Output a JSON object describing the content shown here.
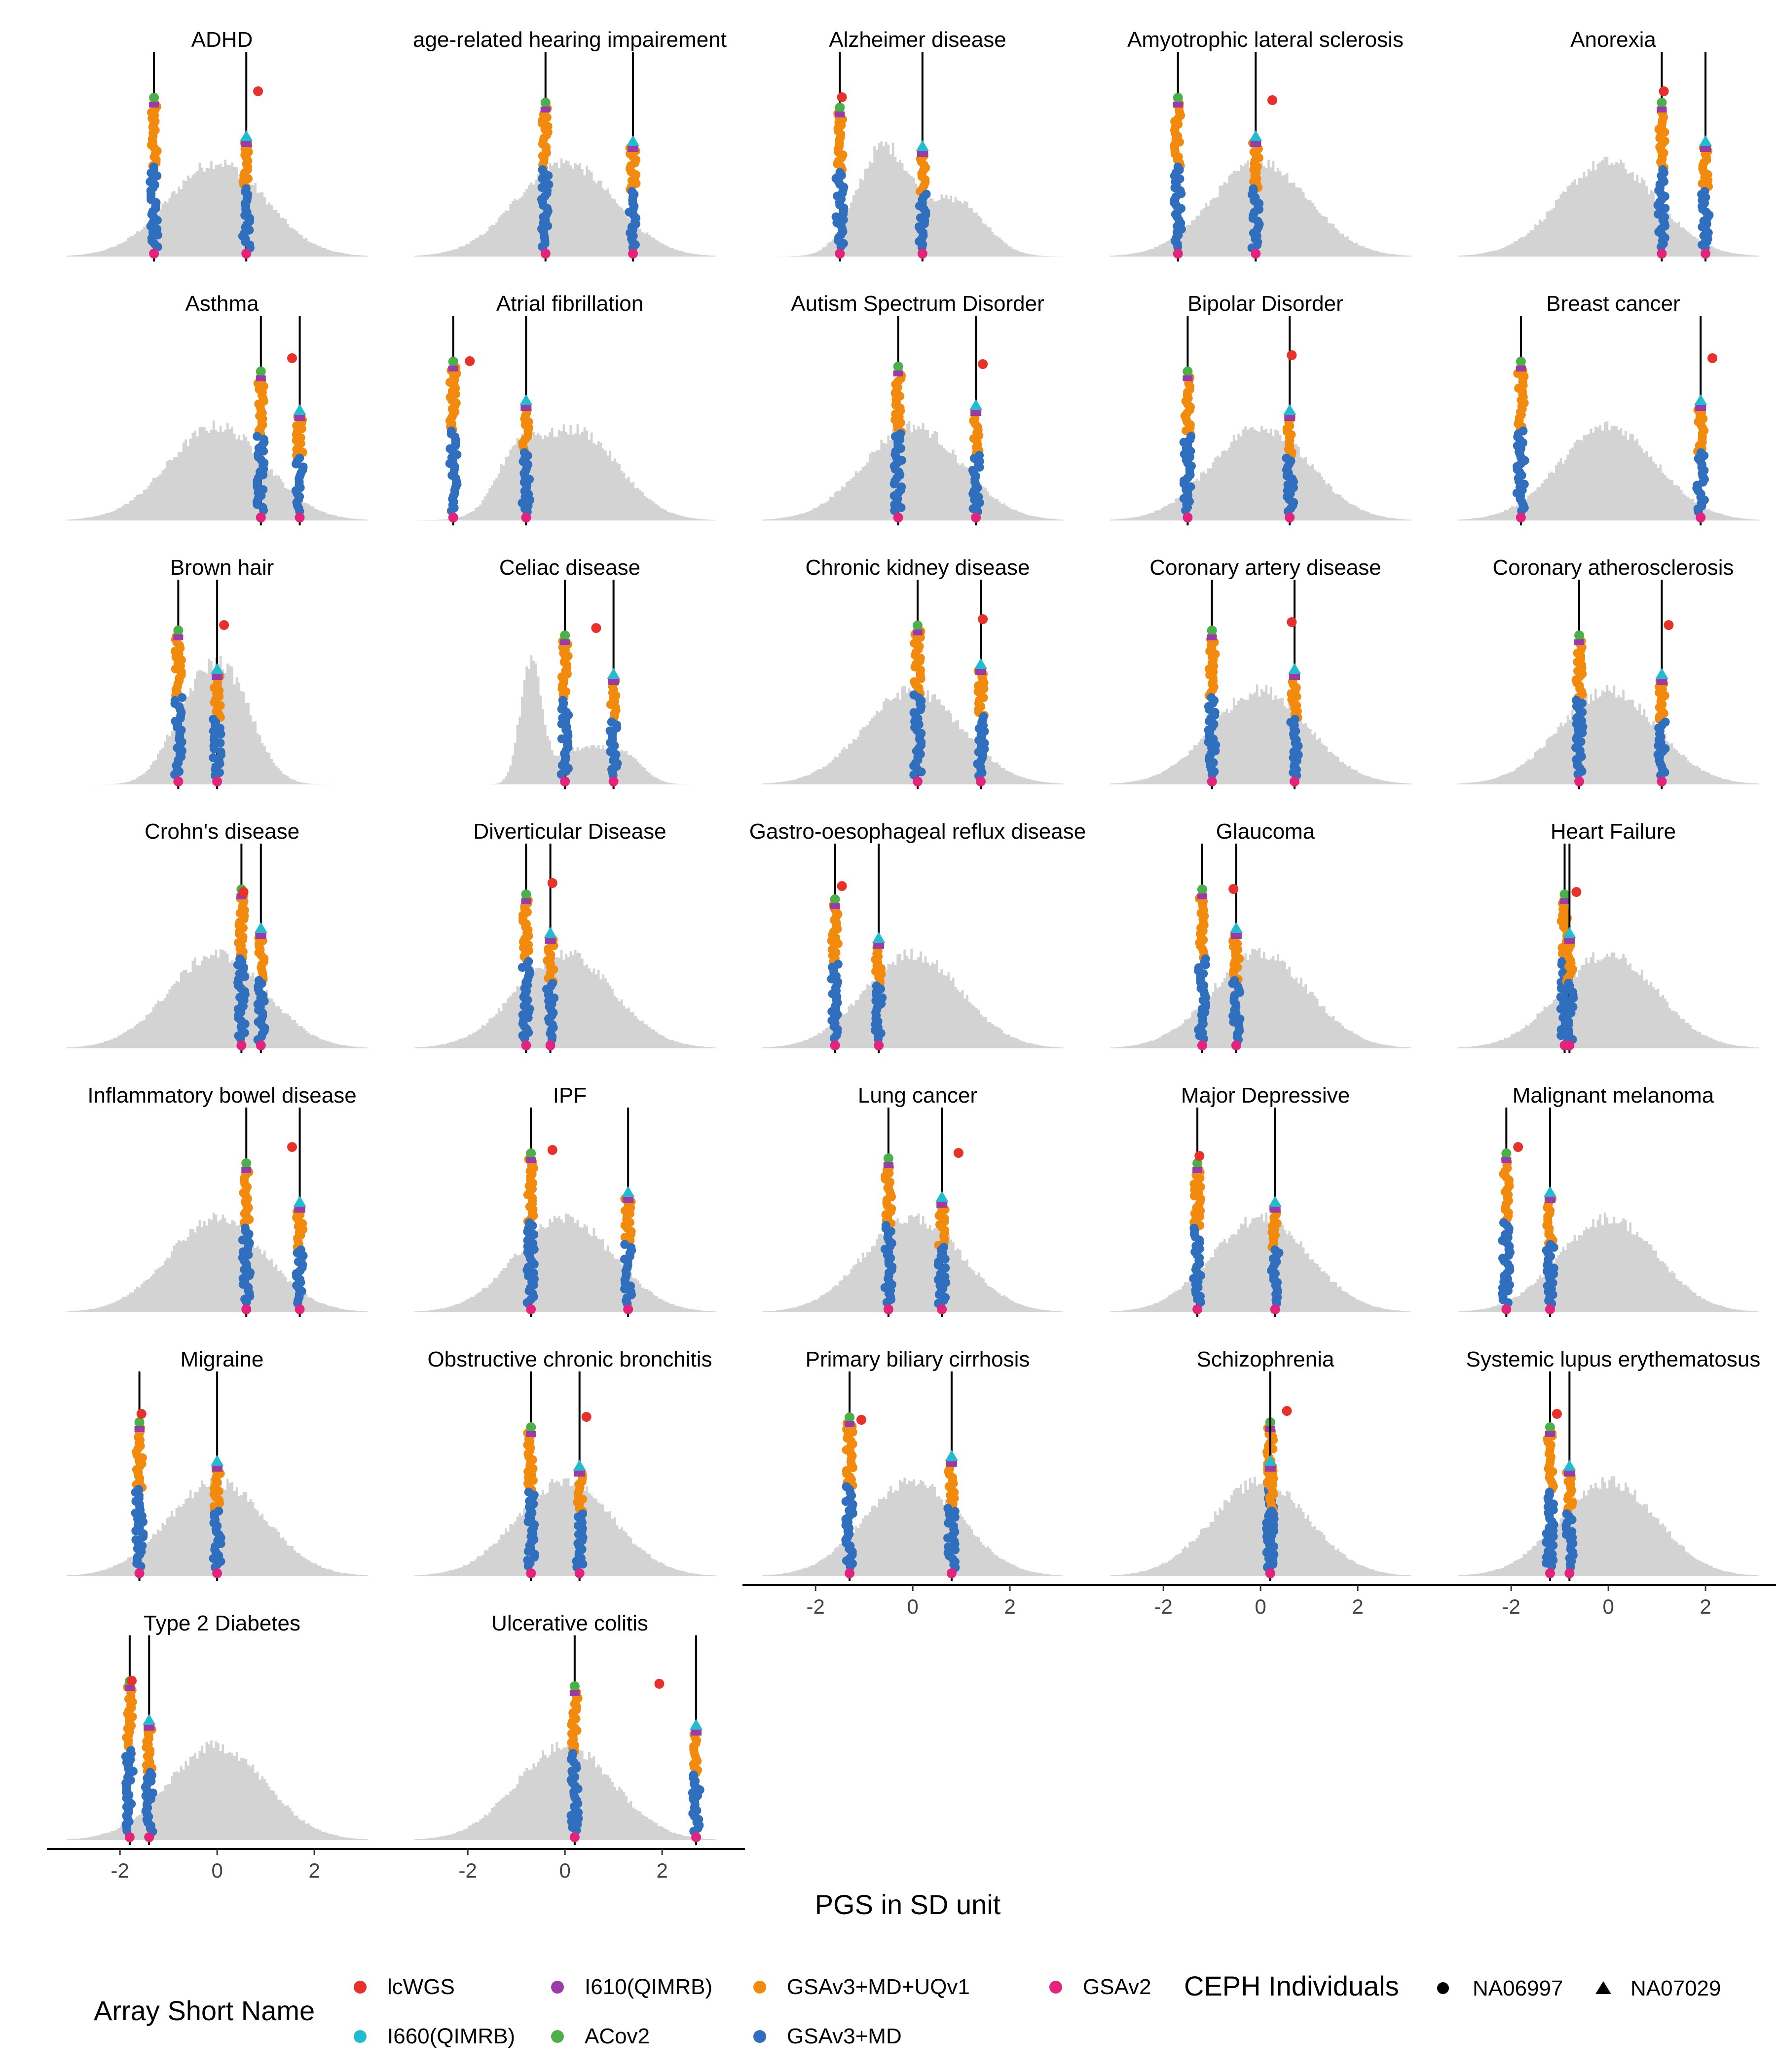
{
  "colors": {
    "lcWGS": "#e8312a",
    "I660(QIMRB)": "#21bcd0",
    "I610(QIMRB)": "#9b3ba7",
    "ACov2": "#4bb04a",
    "GSAv3+MD+UQv1": "#f28a0e",
    "GSAv3+MD": "#2f6fbd",
    "GSAv2": "#e3237c",
    "hist": "#d3d3d3",
    "line": "#000000"
  },
  "xlabel": "PGS in SD unit",
  "x_ticks": [
    "-2",
    "0",
    "2"
  ],
  "x_tick_values": [
    -2,
    0,
    2
  ],
  "xlim": [
    -3.2,
    3.4
  ],
  "legend": {
    "array_title": "Array Short Name",
    "arrays": [
      "lcWGS",
      "I610(QIMRB)",
      "GSAv3+MD+UQv1",
      "GSAv2",
      "I660(QIMRB)",
      "ACov2",
      "GSAv3+MD"
    ],
    "ceph_title": "CEPH Individuals",
    "ceph": [
      {
        "label": "NA06997",
        "icon": "circle-icon"
      },
      {
        "label": "NA07029",
        "icon": "triangle-icon"
      }
    ]
  },
  "chart_data": [
    {
      "type": "histogram+strip",
      "title": "ADHD",
      "vlines": [
        -1.3,
        0.6
      ],
      "wgs": [
        0.7,
        null
      ],
      "acov": [
        0.55,
        -1.3
      ],
      "dist": "normal"
    },
    {
      "type": "histogram+strip",
      "title": "age-related hearing impairement",
      "vlines": [
        -0.4,
        1.4
      ],
      "wgs": [
        null,
        null
      ],
      "acov": [
        1.4,
        -0.4
      ],
      "dist": "normal"
    },
    {
      "type": "histogram+strip",
      "title": "Alzheimer disease",
      "vlines": [
        -1.5,
        0.2
      ],
      "wgs": [
        -1.6,
        null
      ],
      "acov": [
        -1.4,
        0.4
      ],
      "dist": "bimodal"
    },
    {
      "type": "histogram+strip",
      "title": "Amyotrophic lateral sclerosis",
      "vlines": [
        -1.7,
        -0.1
      ],
      "wgs": [
        0.1,
        null
      ],
      "acov": [
        -0.05,
        -1.7
      ],
      "dist": "normal"
    },
    {
      "type": "histogram+strip",
      "title": "Anorexia",
      "vlines": [
        1.1,
        2.0
      ],
      "wgs": [
        1.0,
        null
      ],
      "acov": [
        1.1,
        2.0
      ],
      "dist": "normal"
    },
    {
      "type": "histogram+strip",
      "title": "Asthma",
      "vlines": [
        0.9,
        1.7
      ],
      "wgs": [
        1.4,
        null
      ],
      "acov": [
        1.6,
        0.9
      ],
      "dist": "normal"
    },
    {
      "type": "histogram+strip",
      "title": "Atrial fibrillation",
      "vlines": [
        -2.3,
        -0.8
      ],
      "wgs": [
        -2.1,
        null
      ],
      "acov": [
        -2.3,
        -0.8
      ],
      "dist": "bimodal_right"
    },
    {
      "type": "histogram+strip",
      "title": "Autism Spectrum Disorder",
      "vlines": [
        -0.3,
        1.3
      ],
      "wgs": [
        1.3,
        null
      ],
      "acov": [
        1.3,
        -0.3
      ],
      "dist": "normal"
    },
    {
      "type": "histogram+strip",
      "title": "Bipolar Disorder",
      "vlines": [
        -1.5,
        0.6
      ],
      "wgs": [
        0.5,
        null
      ],
      "acov": [
        0.6,
        -1.5
      ],
      "dist": "normal"
    },
    {
      "type": "histogram+strip",
      "title": "Breast cancer",
      "vlines": [
        -1.8,
        1.9
      ],
      "wgs": [
        2.0,
        null
      ],
      "acov": [
        1.8,
        -1.8
      ],
      "dist": "normal"
    },
    {
      "type": "histogram+strip",
      "title": "Brown hair",
      "vlines": [
        -0.8,
        0.0
      ],
      "wgs": [
        0.0,
        null
      ],
      "acov": [
        0.0,
        -0.8
      ],
      "dist": "skew_right"
    },
    {
      "type": "histogram+strip",
      "title": "Celiac disease",
      "vlines": [
        0.0,
        1.0
      ],
      "wgs": [
        0.5,
        null
      ],
      "acov": [
        1.0,
        0.0
      ],
      "dist": "celiac"
    },
    {
      "type": "histogram+strip",
      "title": "Chronic kidney disease",
      "vlines": [
        0.1,
        1.4
      ],
      "wgs": [
        1.3,
        null
      ],
      "acov": [
        1.0,
        0.1
      ],
      "dist": "normal"
    },
    {
      "type": "histogram+strip",
      "title": "Coronary artery disease",
      "vlines": [
        -1.0,
        0.7
      ],
      "wgs": [
        0.5,
        null
      ],
      "acov": [
        0.7,
        -1.0
      ],
      "dist": "normal"
    },
    {
      "type": "histogram+strip",
      "title": "Coronary atherosclerosis",
      "vlines": [
        -0.6,
        1.1
      ],
      "wgs": [
        1.1,
        null
      ],
      "acov": [
        1.0,
        -0.6
      ],
      "dist": "normal"
    },
    {
      "type": "histogram+strip",
      "title": "Crohn's disease",
      "vlines": [
        0.5,
        0.9
      ],
      "wgs": [
        0.4,
        null
      ],
      "acov": [
        0.5,
        0.9
      ],
      "dist": "normal"
    },
    {
      "type": "histogram+strip",
      "title": "Diverticular Disease",
      "vlines": [
        -0.8,
        -0.3
      ],
      "wgs": [
        -0.4,
        null
      ],
      "acov": [
        -0.3,
        -0.8
      ],
      "dist": "normal"
    },
    {
      "type": "histogram+strip",
      "title": "Gastro-oesophageal reflux disease",
      "vlines": [
        -1.6,
        -0.7
      ],
      "wgs": [
        -1.6,
        null
      ],
      "acov": [
        -1.6,
        -0.7
      ],
      "dist": "normal"
    },
    {
      "type": "histogram+strip",
      "title": "Glaucoma",
      "vlines": [
        -1.2,
        -0.5
      ],
      "wgs": [
        -0.7,
        null
      ],
      "acov": [
        -0.5,
        -1.2
      ],
      "dist": "normal"
    },
    {
      "type": "histogram+strip",
      "title": "Heart Failure",
      "vlines": [
        -0.9,
        -0.8
      ],
      "wgs": [
        -0.8,
        null
      ],
      "acov": [
        -0.9,
        -0.9
      ],
      "dist": "normal"
    },
    {
      "type": "histogram+strip",
      "title": "Inflammatory bowel disease",
      "vlines": [
        0.6,
        1.7
      ],
      "wgs": [
        1.4,
        null
      ],
      "acov": [
        1.7,
        0.4
      ],
      "dist": "normal"
    },
    {
      "type": "histogram+strip",
      "title": "IPF",
      "vlines": [
        -0.7,
        1.3
      ],
      "wgs": [
        -0.4,
        null
      ],
      "acov": [
        -0.7,
        1.3
      ],
      "dist": "normal"
    },
    {
      "type": "histogram+strip",
      "title": "Lung cancer",
      "vlines": [
        -0.5,
        0.6
      ],
      "wgs": [
        0.8,
        null
      ],
      "acov": [
        0.6,
        -0.5
      ],
      "dist": "normal"
    },
    {
      "type": "histogram+strip",
      "title": "Major Depressive",
      "vlines": [
        -1.3,
        0.3
      ],
      "wgs": [
        -1.4,
        null
      ],
      "acov": [
        -1.3,
        0.3
      ],
      "dist": "normal"
    },
    {
      "type": "histogram+strip",
      "title": "Malignant melanoma",
      "vlines": [
        -2.1,
        -1.2
      ],
      "wgs": [
        -2.0,
        null
      ],
      "acov": [
        -2.1,
        -1.2
      ],
      "dist": "normal"
    },
    {
      "type": "histogram+strip",
      "title": "Migraine",
      "vlines": [
        -1.6,
        0.0
      ],
      "wgs": [
        -1.7,
        null
      ],
      "acov": [
        -1.5,
        0.0
      ],
      "dist": "normal"
    },
    {
      "type": "histogram+strip",
      "title": "Obstructive chronic bronchitis",
      "vlines": [
        -0.7,
        0.3
      ],
      "wgs": [
        0.3,
        null
      ],
      "acov": [
        0.3,
        -0.7
      ],
      "dist": "normal"
    },
    {
      "type": "histogram+strip",
      "title": "Primary biliary cirrhosis",
      "vlines": [
        -1.3,
        0.8
      ],
      "wgs": [
        -1.2,
        null
      ],
      "acov": [
        -1.2,
        0.8
      ],
      "dist": "normal"
    },
    {
      "type": "histogram+strip",
      "title": "Schizophrenia",
      "vlines": [
        0.2,
        0.2
      ],
      "wgs": [
        0.4,
        null
      ],
      "acov": [
        0.1,
        0.2
      ],
      "dist": "normal"
    },
    {
      "type": "histogram+strip",
      "title": "Systemic lupus erythematosus",
      "vlines": [
        -1.2,
        -0.8
      ],
      "wgs": [
        -1.2,
        null
      ],
      "acov": [
        -1.3,
        -0.8
      ],
      "dist": "normal"
    },
    {
      "type": "histogram+strip",
      "title": "Type 2 Diabetes",
      "vlines": [
        -1.8,
        -1.4
      ],
      "wgs": [
        -1.9,
        null
      ],
      "acov": [
        -1.7,
        -1.4
      ],
      "dist": "normal"
    },
    {
      "type": "histogram+strip",
      "title": "Ulcerative colitis",
      "vlines": [
        0.2,
        2.7
      ],
      "wgs": [
        1.8,
        null
      ],
      "acov": [
        2.7,
        0.2
      ],
      "dist": "normal"
    }
  ]
}
